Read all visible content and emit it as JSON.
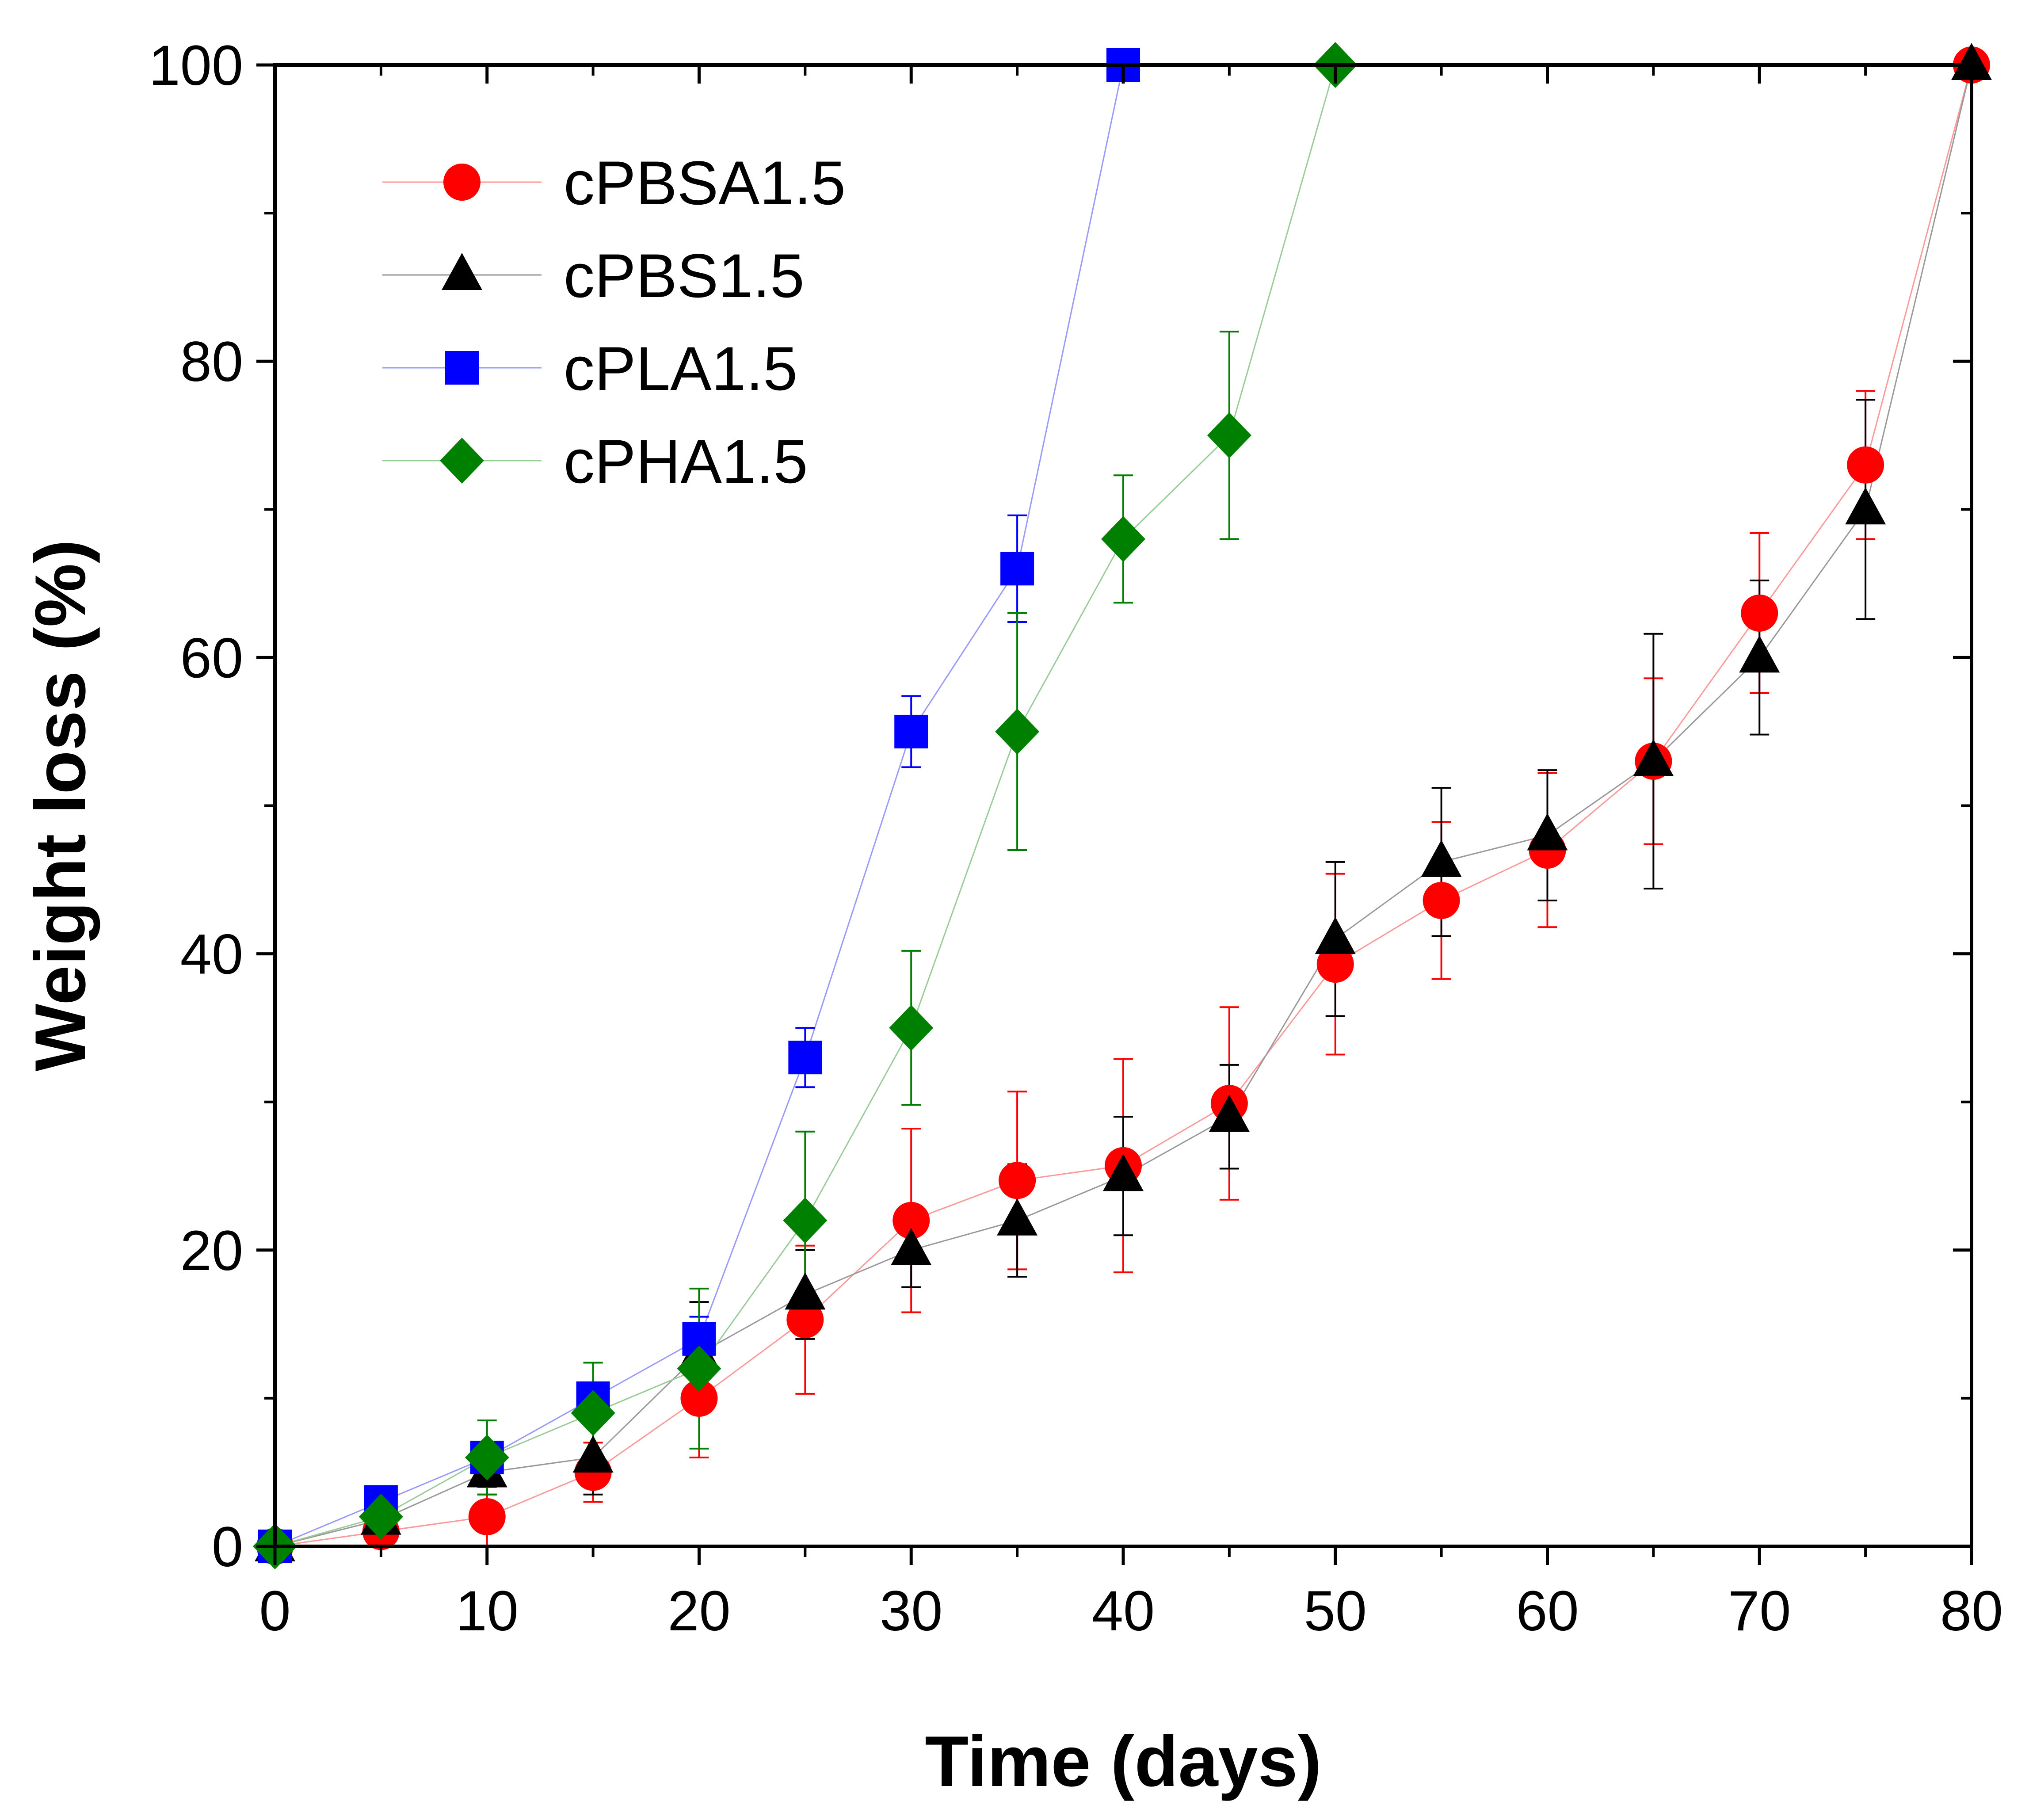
{
  "chart_data": {
    "type": "scatter",
    "title": "",
    "xlabel": "Time (days)",
    "ylabel": "Weight loss (%)",
    "xlim": [
      0,
      80
    ],
    "ylim": [
      0,
      100
    ],
    "xticks": [
      0,
      10,
      20,
      30,
      40,
      50,
      60,
      70,
      80
    ],
    "yticks": [
      0,
      20,
      40,
      60,
      80,
      100
    ],
    "xtick_labels": [
      "0",
      "10",
      "20",
      "30",
      "40",
      "50",
      "60",
      "70",
      "80"
    ],
    "ytick_labels": [
      "0",
      "20",
      "40",
      "60",
      "80",
      "100"
    ],
    "grid": false,
    "legend_position": "top-left",
    "series": [
      {
        "name": "cPBSA1.5",
        "marker": "circle",
        "color": "#ff0000",
        "line_color": "#ff9999",
        "x": [
          0,
          5,
          10,
          15,
          20,
          25,
          30,
          35,
          40,
          45,
          50,
          55,
          60,
          65,
          70,
          75,
          80
        ],
        "y": [
          0,
          1,
          2,
          5,
          10,
          15.3,
          22,
          24.7,
          25.7,
          29.9,
          39.3,
          43.6,
          47,
          53,
          63,
          73,
          100
        ],
        "err": [
          0,
          0.8,
          2,
          2,
          4,
          5,
          6.2,
          6,
          7.2,
          6.5,
          6.1,
          5.3,
          5.2,
          5.6,
          5.4,
          5,
          0
        ]
      },
      {
        "name": "cPBS1.5",
        "marker": "triangle",
        "color": "#000000",
        "line_color": "#999999",
        "x": [
          0,
          5,
          10,
          15,
          20,
          25,
          30,
          35,
          40,
          45,
          50,
          55,
          60,
          65,
          70,
          75,
          80
        ],
        "y": [
          0,
          1.8,
          5,
          6,
          13,
          17,
          20,
          22,
          25,
          29,
          41,
          46.2,
          48,
          53,
          60,
          70,
          100
        ],
        "err": [
          0,
          0.8,
          1.5,
          2.5,
          3.5,
          3,
          2.5,
          3.8,
          4,
          3.5,
          5.2,
          5,
          4.4,
          8.6,
          5.2,
          7.4,
          0
        ]
      },
      {
        "name": "cPLA1.5",
        "marker": "square",
        "color": "#0000ff",
        "line_color": "#9999ff",
        "x": [
          0,
          5,
          10,
          15,
          20,
          25,
          30,
          35,
          40
        ],
        "y": [
          0,
          3,
          6,
          10,
          14,
          33,
          55,
          66,
          100
        ],
        "err": [
          0,
          0.5,
          0.8,
          0.8,
          1.5,
          2,
          2.4,
          3.6,
          0
        ]
      },
      {
        "name": "cPHA1.5",
        "marker": "diamond",
        "color": "#008000",
        "line_color": "#99cc99",
        "x": [
          0,
          5,
          10,
          15,
          20,
          25,
          30,
          35,
          40,
          45,
          50
        ],
        "y": [
          0,
          2,
          6,
          9,
          12,
          22,
          35,
          55,
          68,
          75,
          100
        ],
        "err": [
          0,
          0.7,
          2.5,
          3.4,
          5.4,
          6,
          5.2,
          8,
          4.3,
          7,
          0
        ]
      }
    ]
  }
}
